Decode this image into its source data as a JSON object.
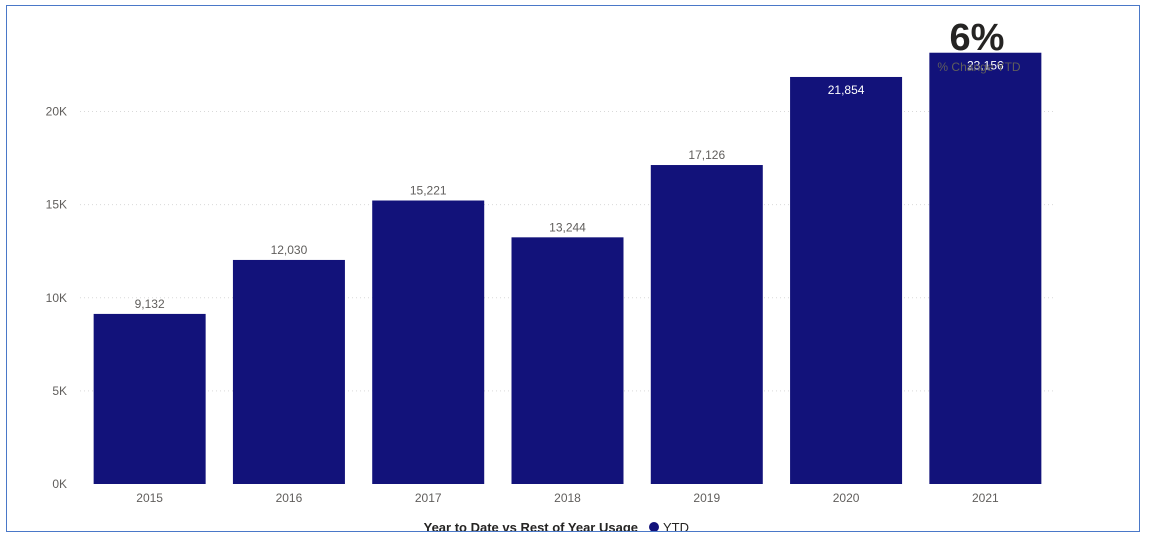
{
  "chart_data": {
    "type": "bar",
    "categories": [
      "2015",
      "2016",
      "2017",
      "2018",
      "2019",
      "2020",
      "2021"
    ],
    "series": [
      {
        "name": "YTD",
        "values": [
          9132,
          12030,
          15221,
          13244,
          17126,
          21854,
          23156
        ],
        "data_labels": [
          "9,132",
          "12,030",
          "15,221",
          "13,244",
          "17,126",
          "21,854",
          "23,156"
        ]
      }
    ],
    "y_ticks": [
      0,
      5000,
      10000,
      15000,
      20000
    ],
    "y_tick_labels": [
      "0K",
      "5K",
      "10K",
      "15K",
      "20K"
    ],
    "ylim": [
      0,
      24000
    ],
    "grid": true,
    "legend_position": "bottom-center",
    "legend_title": "Year to Date vs Rest of Year Usage"
  },
  "kpi": {
    "value": "6%",
    "caption": "% Change YTD"
  },
  "colors": {
    "bar": "#12127a",
    "label_outside": "#605e5c",
    "label_inside": "#ffffff"
  }
}
